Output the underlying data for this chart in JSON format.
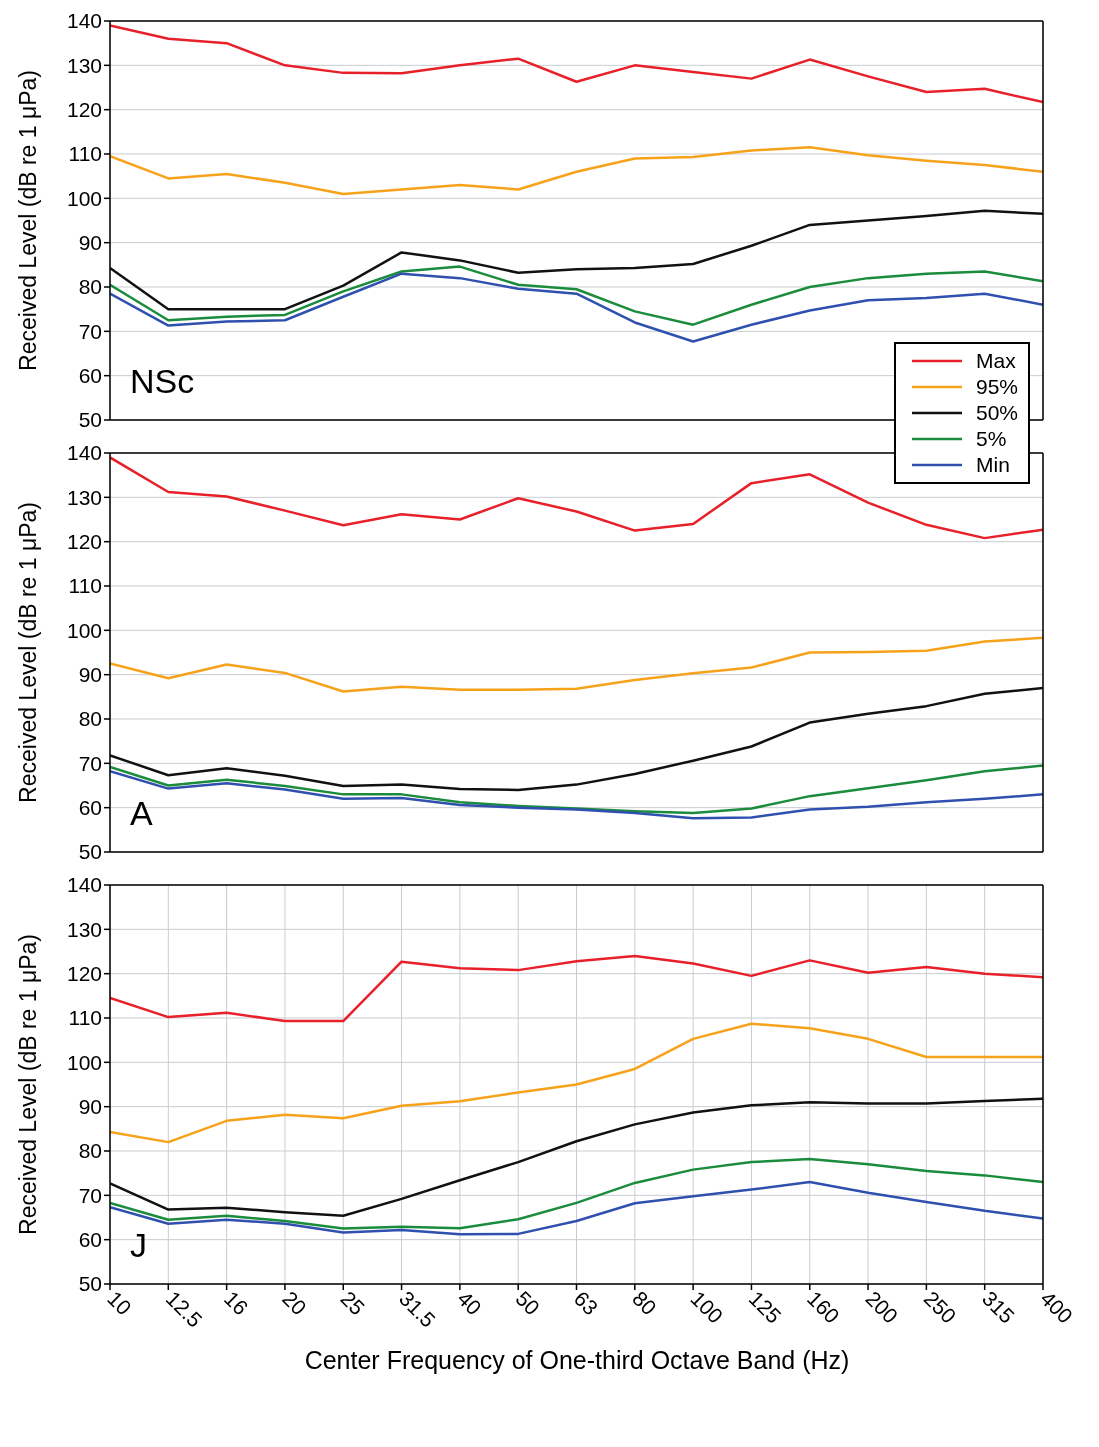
{
  "chart_data": [
    {
      "type": "line",
      "ylabel": "Received Level (dB re 1 μPa)",
      "annotations": [
        "NSc"
      ],
      "categories": [
        "10",
        "12.5",
        "16",
        "20",
        "25",
        "31.5",
        "40",
        "50",
        "63",
        "80",
        "100",
        "125",
        "160",
        "200",
        "250",
        "315",
        "400"
      ],
      "ylim": [
        50,
        140
      ],
      "yticks": [
        50,
        60,
        70,
        80,
        90,
        100,
        110,
        120,
        130,
        140
      ],
      "grid": true,
      "legend": "bottom right",
      "tick_labels": "y",
      "series": [
        {
          "name": "Max",
          "color": "#e8202a",
          "values": [
            139,
            136,
            135,
            130,
            128.3,
            128.2,
            130,
            131.5,
            126.3,
            130,
            128.5,
            127,
            131.3,
            127.5,
            124,
            124.7,
            121.7
          ]
        },
        {
          "name": "95%",
          "color": "#f7a21b",
          "values": [
            109.5,
            104.5,
            105.5,
            103.5,
            101,
            102,
            103,
            102,
            106,
            109,
            109.3,
            110.8,
            111.5,
            109.7,
            108.5,
            107.5,
            106
          ]
        },
        {
          "name": "50%",
          "color": "#111111",
          "values": [
            84.3,
            75,
            75,
            75,
            80.3,
            87.8,
            86,
            83.2,
            84,
            84.3,
            85.2,
            89.3,
            94,
            95,
            96,
            97.2,
            96.5
          ]
        },
        {
          "name": "5%",
          "color": "#1a8c3c",
          "values": [
            80.5,
            72.5,
            73.3,
            73.7,
            79,
            83.5,
            84.6,
            80.5,
            79.5,
            74.5,
            71.5,
            76,
            80,
            82,
            83,
            83.5,
            81.3
          ]
        },
        {
          "name": "Min",
          "color": "#3050b0",
          "values": [
            78.5,
            71.3,
            72.2,
            72.5,
            77.8,
            83,
            82,
            79.6,
            78.5,
            72,
            67.7,
            71.5,
            74.7,
            77,
            77.5,
            78.5,
            76
          ]
        }
      ]
    },
    {
      "type": "line",
      "ylabel": "Received Level (dB re 1 μPa)",
      "annotations": [
        "A"
      ],
      "categories": [
        "10",
        "12.5",
        "16",
        "20",
        "25",
        "31.5",
        "40",
        "50",
        "63",
        "80",
        "100",
        "125",
        "160",
        "200",
        "250",
        "315",
        "400"
      ],
      "ylim": [
        50,
        140
      ],
      "yticks": [
        50,
        60,
        70,
        80,
        90,
        100,
        110,
        120,
        130,
        140
      ],
      "grid": true,
      "tick_labels": "y",
      "series": [
        {
          "color": "#e8202a",
          "values": [
            139,
            131.2,
            130.2,
            127,
            123.7,
            126.2,
            125,
            129.8,
            126.8,
            122.5,
            124,
            133.2,
            135.2,
            128.8,
            123.8,
            120.8,
            122.7
          ]
        },
        {
          "color": "#f7a21b",
          "values": [
            92.5,
            89.2,
            92.3,
            90.4,
            86.2,
            87.3,
            86.6,
            86.6,
            86.8,
            88.8,
            90.3,
            91.6,
            95,
            95.1,
            95.4,
            97.5,
            98.3
          ]
        },
        {
          "color": "#111111",
          "values": [
            71.8,
            67.3,
            68.9,
            67.2,
            64.9,
            65.2,
            64.2,
            64,
            65.2,
            67.6,
            70.6,
            73.8,
            79.2,
            81.2,
            82.9,
            85.7,
            87
          ]
        },
        {
          "color": "#1a8c3c",
          "values": [
            69.2,
            65,
            66.3,
            64.9,
            63,
            63,
            61.2,
            60.4,
            59.8,
            59.2,
            58.8,
            59.8,
            62.6,
            64.4,
            66.2,
            68.2,
            69.5
          ]
        },
        {
          "color": "#3050b0",
          "values": [
            68.2,
            64.3,
            65.5,
            64.1,
            62,
            62.2,
            60.6,
            60,
            59.6,
            58.8,
            57.6,
            57.8,
            59.6,
            60.2,
            61.2,
            62,
            63
          ]
        }
      ]
    },
    {
      "type": "line",
      "ylabel": "Received Level (dB re 1 μPa)",
      "xlabel": "Center Frequency of One-third Octave Band (Hz)",
      "annotations": [
        "J"
      ],
      "categories": [
        "10",
        "12.5",
        "16",
        "20",
        "25",
        "31.5",
        "40",
        "50",
        "63",
        "80",
        "100",
        "125",
        "160",
        "200",
        "250",
        "315",
        "400"
      ],
      "ylim": [
        50,
        140
      ],
      "yticks": [
        50,
        60,
        70,
        80,
        90,
        100,
        110,
        120,
        130,
        140
      ],
      "grid": true,
      "series": [
        {
          "color": "#e8202a",
          "values": [
            114.5,
            110.2,
            111.2,
            109.3,
            109.3,
            122.7,
            121.2,
            120.8,
            122.8,
            124,
            122.3,
            119.5,
            123,
            120.2,
            121.5,
            120,
            119.2
          ]
        },
        {
          "color": "#f7a21b",
          "values": [
            84.3,
            82,
            86.8,
            88.2,
            87.4,
            90.2,
            91.2,
            93.2,
            95,
            98.5,
            105.3,
            108.7,
            107.7,
            105.3,
            101.2,
            101.2,
            101.2
          ]
        },
        {
          "color": "#111111",
          "values": [
            72.7,
            66.8,
            67.2,
            66.2,
            65.4,
            69.2,
            73.4,
            77.5,
            82.2,
            86,
            88.7,
            90.3,
            91,
            90.7,
            90.7,
            91.3,
            91.8
          ]
        },
        {
          "color": "#1a8c3c",
          "values": [
            68.3,
            64.5,
            65.4,
            64.2,
            62.5,
            62.9,
            62.6,
            64.6,
            68.3,
            72.8,
            75.8,
            77.5,
            78.2,
            77,
            75.5,
            74.5,
            73
          ]
        },
        {
          "color": "#3050b0",
          "values": [
            67.3,
            63.6,
            64.5,
            63.6,
            61.6,
            62.2,
            61.2,
            61.3,
            64.2,
            68.2,
            69.8,
            71.3,
            73,
            70.6,
            68.5,
            66.5,
            64.8
          ]
        }
      ]
    }
  ]
}
